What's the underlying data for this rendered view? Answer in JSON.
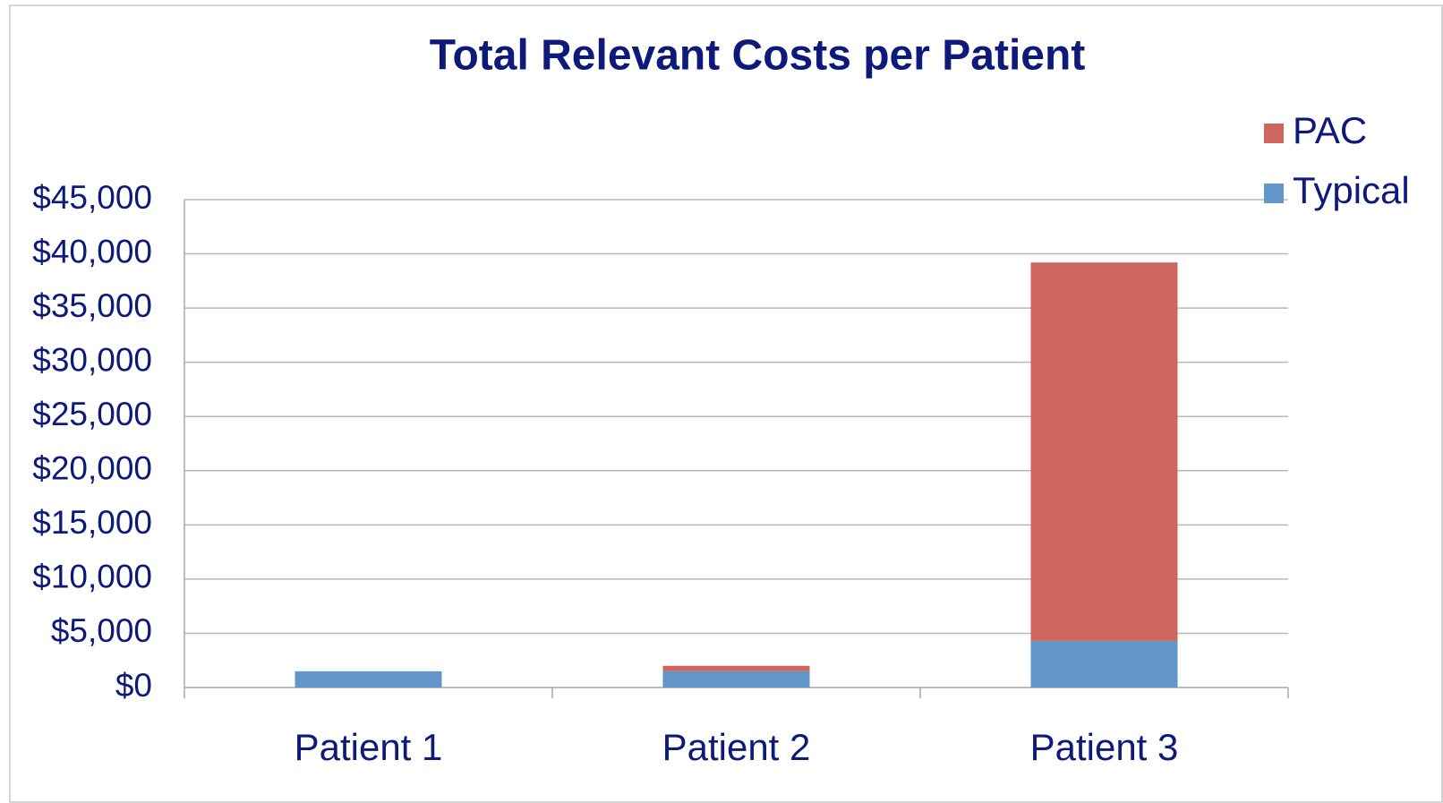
{
  "chart_data": {
    "type": "stacked_bar",
    "title": "Total Relevant Costs per Patient",
    "categories": [
      "Patient 1",
      "Patient 2",
      "Patient 3"
    ],
    "series": [
      {
        "name": "Typical",
        "color": "#6295c8",
        "values": [
          1500,
          1500,
          4300
        ]
      },
      {
        "name": "PAC",
        "color": "#cd665e",
        "values": [
          0,
          500,
          34900
        ]
      }
    ],
    "ylim": [
      0,
      45000
    ],
    "yticks": [
      {
        "value": 0,
        "label": "$0"
      },
      {
        "value": 5000,
        "label": "$5,000"
      },
      {
        "value": 10000,
        "label": "$10,000"
      },
      {
        "value": 15000,
        "label": "$15,000"
      },
      {
        "value": 20000,
        "label": "$20,000"
      },
      {
        "value": 25000,
        "label": "$25,000"
      },
      {
        "value": 30000,
        "label": "$30,000"
      },
      {
        "value": 35000,
        "label": "$35,000"
      },
      {
        "value": 40000,
        "label": "$40,000"
      },
      {
        "value": 45000,
        "label": "$45,000"
      }
    ],
    "grid": true,
    "legend": "top-right"
  }
}
